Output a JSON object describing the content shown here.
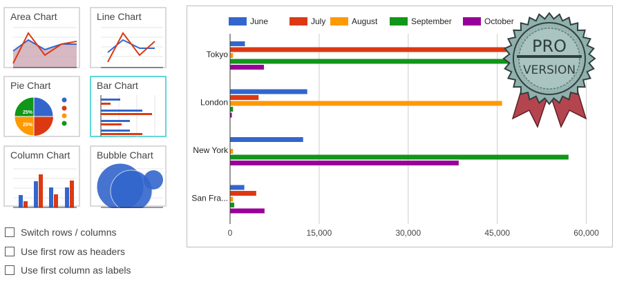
{
  "tiles": [
    {
      "label": "Area Chart"
    },
    {
      "label": "Line Chart"
    },
    {
      "label": "Pie Chart",
      "pie_labels": [
        "25%",
        "25%"
      ]
    },
    {
      "label": "Bar Chart",
      "selected": true
    },
    {
      "label": "Column Chart"
    },
    {
      "label": "Bubble Chart"
    }
  ],
  "options": [
    {
      "label": "Switch rows / columns",
      "checked": false
    },
    {
      "label": "Use first row as headers",
      "checked": false
    },
    {
      "label": "Use first column as labels",
      "checked": false
    }
  ],
  "badge": {
    "line1": "PRO",
    "line2": "VERSION"
  },
  "colors": {
    "june": "#3366cc",
    "july": "#dc3912",
    "august": "#ff9900",
    "september": "#109618",
    "october": "#990099",
    "tile_selected": "#5fd6da"
  },
  "chart_data": {
    "type": "bar",
    "orientation": "horizontal",
    "categories": [
      "Tokyo",
      "London",
      "New York",
      "San Fra..."
    ],
    "series": [
      {
        "name": "June",
        "color": "#3366cc",
        "values": [
          2500,
          13000,
          12300,
          2400
        ]
      },
      {
        "name": "July",
        "color": "#dc3912",
        "values": [
          49000,
          4800,
          0,
          4400
        ]
      },
      {
        "name": "August",
        "color": "#ff9900",
        "values": [
          500,
          45800,
          500,
          500
        ]
      },
      {
        "name": "September",
        "color": "#109618",
        "values": [
          48000,
          500,
          57000,
          700
        ]
      },
      {
        "name": "October",
        "color": "#990099",
        "values": [
          5700,
          300,
          38500,
          5800
        ]
      }
    ],
    "xlim": [
      0,
      64000
    ],
    "xticks": [
      0,
      15000,
      30000,
      45000,
      60000
    ],
    "xtick_labels": [
      "0",
      "15,000",
      "30,000",
      "45,000",
      "60,000"
    ],
    "grid": true,
    "legend_position": "top"
  }
}
